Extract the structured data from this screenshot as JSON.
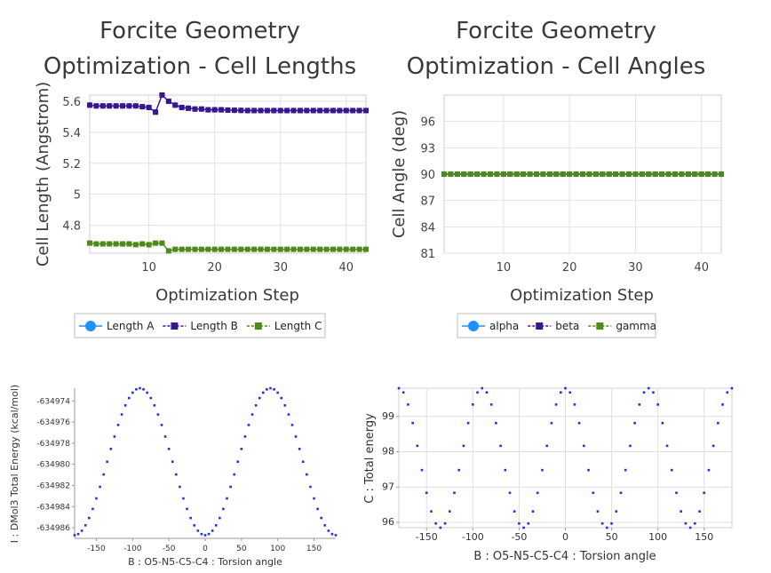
{
  "chart_data": [
    {
      "type": "line",
      "title_lines": [
        "Forcite Geometry",
        "Optimization - Cell Lengths"
      ],
      "xlabel": "Optimization Step",
      "ylabel": "Cell Length (Angstrom)",
      "xlim": [
        1,
        43
      ],
      "ylim": [
        4.62,
        5.64
      ],
      "xticks": [
        10,
        20,
        30,
        40
      ],
      "yticks": [
        4.8,
        5,
        5.2,
        5.4,
        5.6
      ],
      "ytick_labels": [
        "4.8",
        "5",
        "5.2",
        "5.4",
        "5.6"
      ],
      "grid": true,
      "legend_position": "bottom",
      "x": [
        1,
        2,
        3,
        4,
        5,
        6,
        7,
        8,
        9,
        10,
        11,
        12,
        13,
        14,
        15,
        16,
        17,
        18,
        19,
        20,
        21,
        22,
        23,
        24,
        25,
        26,
        27,
        28,
        29,
        30,
        31,
        32,
        33,
        34,
        35,
        36,
        37,
        38,
        39,
        40,
        41,
        42,
        43
      ],
      "series": [
        {
          "name": "Length A",
          "color": "#1e90ff",
          "marker": "circle",
          "values": [
            5.575,
            5.57,
            5.57,
            5.57,
            5.57,
            5.57,
            5.57,
            5.57,
            5.565,
            5.56,
            5.53,
            5.64,
            5.6,
            5.575,
            5.56,
            5.555,
            5.55,
            5.55,
            5.545,
            5.545,
            5.545,
            5.543,
            5.542,
            5.541,
            5.54,
            5.54,
            5.54,
            5.54,
            5.54,
            5.54,
            5.54,
            5.54,
            5.54,
            5.54,
            5.54,
            5.54,
            5.54,
            5.54,
            5.54,
            5.54,
            5.54,
            5.54,
            5.54
          ]
        },
        {
          "name": "Length B",
          "color": "#3a1590",
          "marker": "square",
          "values": [
            5.575,
            5.57,
            5.57,
            5.57,
            5.57,
            5.57,
            5.57,
            5.57,
            5.565,
            5.56,
            5.53,
            5.64,
            5.6,
            5.575,
            5.56,
            5.555,
            5.55,
            5.55,
            5.545,
            5.545,
            5.545,
            5.543,
            5.542,
            5.541,
            5.54,
            5.54,
            5.54,
            5.54,
            5.54,
            5.54,
            5.54,
            5.54,
            5.54,
            5.54,
            5.54,
            5.54,
            5.54,
            5.54,
            5.54,
            5.54,
            5.54,
            5.54,
            5.54
          ]
        },
        {
          "name": "Length C",
          "color": "#4e8a1a",
          "marker": "square",
          "values": [
            4.685,
            4.68,
            4.68,
            4.68,
            4.68,
            4.68,
            4.68,
            4.675,
            4.68,
            4.675,
            4.685,
            4.685,
            4.635,
            4.645,
            4.645,
            4.645,
            4.645,
            4.645,
            4.645,
            4.645,
            4.645,
            4.645,
            4.645,
            4.645,
            4.645,
            4.645,
            4.645,
            4.645,
            4.645,
            4.645,
            4.645,
            4.645,
            4.645,
            4.645,
            4.645,
            4.645,
            4.645,
            4.645,
            4.645,
            4.645,
            4.645,
            4.645,
            4.645
          ]
        }
      ]
    },
    {
      "type": "line",
      "title_lines": [
        "Forcite Geometry",
        "Optimization - Cell Angles"
      ],
      "xlabel": "Optimization Step",
      "ylabel": "Cell Angle (deg)",
      "xlim": [
        1,
        43
      ],
      "ylim": [
        81,
        99
      ],
      "xticks": [
        10,
        20,
        30,
        40
      ],
      "yticks": [
        81,
        84,
        87,
        90,
        93,
        96
      ],
      "grid": true,
      "legend_position": "bottom",
      "x": [
        1,
        2,
        3,
        4,
        5,
        6,
        7,
        8,
        9,
        10,
        11,
        12,
        13,
        14,
        15,
        16,
        17,
        18,
        19,
        20,
        21,
        22,
        23,
        24,
        25,
        26,
        27,
        28,
        29,
        30,
        31,
        32,
        33,
        34,
        35,
        36,
        37,
        38,
        39,
        40,
        41,
        42,
        43
      ],
      "series": [
        {
          "name": "alpha",
          "color": "#1e90ff",
          "marker": "circle",
          "constant": 90
        },
        {
          "name": "beta",
          "color": "#3a1590",
          "marker": "square",
          "constant": 90
        },
        {
          "name": "gamma",
          "color": "#4e8a1a",
          "marker": "square",
          "constant": 90
        }
      ]
    },
    {
      "type": "scatter",
      "xlabel": "B : O5-N5-C5-C4 : Torsion angle",
      "ylabel": "I : DMol3 Total Energy (kcal/mol)",
      "xlim": [
        -180,
        180
      ],
      "ylim": [
        -634987,
        -634972.8
      ],
      "xticks": [
        -150,
        -100,
        -50,
        0,
        50,
        100,
        150
      ],
      "yticks": [
        -634986,
        -634984,
        -634982,
        -634980,
        -634978,
        -634976,
        -634974
      ],
      "grid": false,
      "color": "#2233dd",
      "x_start": -180,
      "x_step": 5,
      "count": 73,
      "y_min": -634986.7,
      "y_max": -634972.8,
      "period_deg": 180,
      "peak_at": 90
    },
    {
      "type": "scatter",
      "xlabel": "B : O5-N5-C5-C4 : Torsion angle",
      "ylabel": "C : Total energy",
      "xlim": [
        -180,
        180
      ],
      "ylim": [
        95.85,
        99.8
      ],
      "xticks": [
        -150,
        -100,
        -50,
        0,
        50,
        100,
        150
      ],
      "yticks": [
        96,
        97,
        98,
        99
      ],
      "grid": true,
      "color": "#2233dd",
      "x_start": -180,
      "x_step": 5,
      "count": 73,
      "y_min": 95.85,
      "y_max": 99.8,
      "period_deg": 90,
      "peak_at": 90
    }
  ]
}
